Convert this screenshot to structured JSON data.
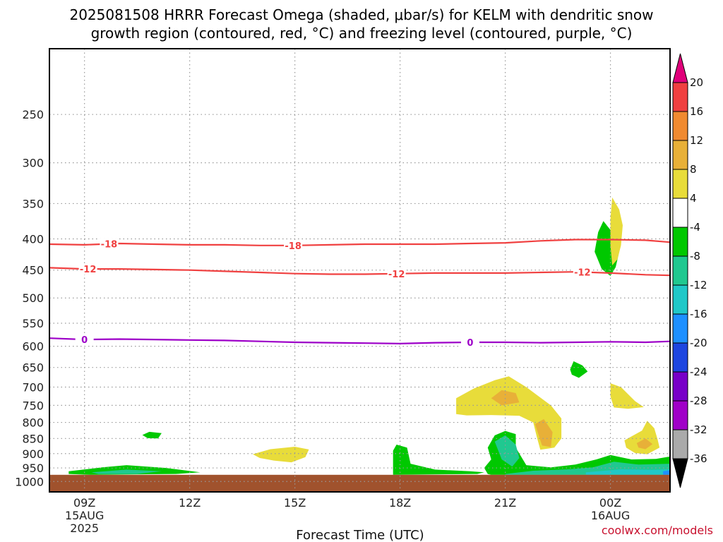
{
  "title_line1": "2025081508 HRRR Forecast Omega (shaded, μbar/s) for KELM with dendritic snow",
  "title_line2": "growth region (contoured, red, °C) and freezing level (contoured, purple, °C)",
  "xlabel": "Forecast Time (UTC)",
  "credit": "coolwx.com/models",
  "colors": {
    "background": "#ffffff",
    "ground": "#a0522d",
    "grid": "#999999",
    "dgz_contour": "#f04040",
    "freezing_contour": "#9d00c8"
  },
  "chart_data": {
    "type": "heatmap",
    "x_axis": {
      "label": "Forecast Time (UTC)",
      "range_hours": [
        8,
        25.7
      ],
      "ticks": [
        {
          "hour": 9,
          "label": "09Z",
          "sub1": "15AUG",
          "sub2": "2025"
        },
        {
          "hour": 12,
          "label": "12Z",
          "sub1": "",
          "sub2": ""
        },
        {
          "hour": 15,
          "label": "15Z",
          "sub1": "",
          "sub2": ""
        },
        {
          "hour": 18,
          "label": "18Z",
          "sub1": "",
          "sub2": ""
        },
        {
          "hour": 21,
          "label": "21Z",
          "sub1": "",
          "sub2": ""
        },
        {
          "hour": 24,
          "label": "00Z",
          "sub1": "16AUG",
          "sub2": ""
        }
      ]
    },
    "y_axis": {
      "label": "",
      "unit": "hPa",
      "scale": "log",
      "range": [
        1040,
        195
      ],
      "ticks": [
        250,
        300,
        350,
        400,
        450,
        500,
        550,
        600,
        650,
        700,
        750,
        800,
        850,
        900,
        950,
        1000
      ]
    },
    "grid": true,
    "ground_pressure": 975,
    "colorbar": {
      "labels": [
        "20",
        "16",
        "12",
        "8",
        "4",
        "-4",
        "-8",
        "-12",
        "-16",
        "-20",
        "-24",
        "-28",
        "-32",
        "-36"
      ],
      "bins": [
        {
          "color": "#f04040"
        },
        {
          "color": "#f08a30"
        },
        {
          "color": "#e8b038"
        },
        {
          "color": "#e8dc3a"
        },
        {
          "color": "#ffffff"
        },
        {
          "color": "#00c800"
        },
        {
          "color": "#20c890"
        },
        {
          "color": "#20c8c8"
        },
        {
          "color": "#1e90ff"
        },
        {
          "color": "#1e46e0"
        },
        {
          "color": "#7800c8"
        },
        {
          "color": "#a000c8"
        },
        {
          "color": "#aaaaaa"
        }
      ],
      "top_arrow_color": "#e0007a",
      "bottom_arrow_color": "#000000"
    },
    "contours": [
      {
        "name": "-18",
        "color": "#f04040",
        "label_hours": [
          9.7,
          14.95
        ],
        "points": [
          [
            8,
            408
          ],
          [
            9,
            409
          ],
          [
            10,
            407
          ],
          [
            11,
            408
          ],
          [
            12,
            409
          ],
          [
            13,
            409
          ],
          [
            14,
            410
          ],
          [
            15,
            410
          ],
          [
            16,
            409
          ],
          [
            17,
            408
          ],
          [
            18,
            408
          ],
          [
            19,
            408
          ],
          [
            20,
            407
          ],
          [
            21,
            406
          ],
          [
            22,
            403
          ],
          [
            23,
            401
          ],
          [
            24,
            401
          ],
          [
            25,
            402
          ],
          [
            25.7,
            405
          ]
        ]
      },
      {
        "name": "-12",
        "color": "#f04040",
        "label_hours": [
          9.1,
          17.9,
          23.2
        ],
        "points": [
          [
            8,
            446
          ],
          [
            9,
            448
          ],
          [
            10,
            448
          ],
          [
            11,
            449
          ],
          [
            12,
            450
          ],
          [
            13,
            452
          ],
          [
            14,
            454
          ],
          [
            15,
            456
          ],
          [
            16,
            457
          ],
          [
            17,
            457
          ],
          [
            18,
            456
          ],
          [
            19,
            455
          ],
          [
            20,
            455
          ],
          [
            21,
            455
          ],
          [
            22,
            454
          ],
          [
            23,
            453
          ],
          [
            24,
            455
          ],
          [
            25,
            458
          ],
          [
            25.7,
            459
          ]
        ]
      },
      {
        "name": "0",
        "color": "#9d00c8",
        "label_hours": [
          9.0,
          20.0
        ],
        "points": [
          [
            8,
            582
          ],
          [
            9,
            585
          ],
          [
            10,
            584
          ],
          [
            11,
            585
          ],
          [
            12,
            586
          ],
          [
            13,
            587
          ],
          [
            14,
            589
          ],
          [
            15,
            591
          ],
          [
            16,
            592
          ],
          [
            17,
            593
          ],
          [
            18,
            594
          ],
          [
            19,
            592
          ],
          [
            20,
            591
          ],
          [
            21,
            591
          ],
          [
            22,
            592
          ],
          [
            23,
            591
          ],
          [
            24,
            590
          ],
          [
            25,
            591
          ],
          [
            25.7,
            589
          ]
        ]
      }
    ],
    "omega_regions": [
      {
        "value_range": "-4 to -8",
        "color": "#00c800",
        "points": [
          [
            8.55,
            962
          ],
          [
            9.5,
            948
          ],
          [
            10.2,
            940
          ],
          [
            11.3,
            950
          ],
          [
            12.3,
            966
          ],
          [
            11.6,
            972
          ],
          [
            9.2,
            975
          ],
          [
            8.55,
            972
          ]
        ]
      },
      {
        "value_range": "-8 to -12",
        "color": "#20c890",
        "points": [
          [
            9.2,
            966
          ],
          [
            10.2,
            956
          ],
          [
            11.2,
            962
          ],
          [
            10.5,
            972
          ],
          [
            9.4,
            972
          ]
        ]
      },
      {
        "value_range": "-4 to -8",
        "color": "#00c800",
        "points": [
          [
            10.65,
            839
          ],
          [
            10.85,
            829
          ],
          [
            11.2,
            833
          ],
          [
            11.1,
            850
          ],
          [
            10.8,
            849
          ]
        ]
      },
      {
        "value_range": "4 to 8",
        "color": "#e8dc3a",
        "points": [
          [
            13.8,
            902
          ],
          [
            14.3,
            885
          ],
          [
            15.0,
            877
          ],
          [
            15.4,
            886
          ],
          [
            15.3,
            912
          ],
          [
            14.9,
            930
          ],
          [
            14.4,
            924
          ],
          [
            14.0,
            915
          ]
        ]
      },
      {
        "value_range": "-4 to -8",
        "color": "#00c800",
        "points": [
          [
            17.8,
            965
          ],
          [
            17.8,
            890
          ],
          [
            17.9,
            870
          ],
          [
            18.2,
            880
          ],
          [
            18.3,
            935
          ],
          [
            19.0,
            956
          ],
          [
            20.0,
            962
          ],
          [
            20.4,
            966
          ],
          [
            20.2,
            972
          ],
          [
            17.8,
            975
          ]
        ]
      },
      {
        "value_range": "-4 to -8",
        "color": "#00c800",
        "points": [
          [
            20.5,
            972
          ],
          [
            20.4,
            950
          ],
          [
            20.6,
            920
          ],
          [
            20.5,
            880
          ],
          [
            20.7,
            840
          ],
          [
            21.0,
            826
          ],
          [
            21.3,
            836
          ],
          [
            21.3,
            880
          ],
          [
            21.6,
            940
          ],
          [
            22.3,
            948
          ],
          [
            23.0,
            938
          ],
          [
            23.6,
            920
          ],
          [
            24.0,
            905
          ],
          [
            24.6,
            920
          ],
          [
            25.3,
            918
          ],
          [
            25.7,
            910
          ],
          [
            25.7,
            975
          ],
          [
            20.6,
            975
          ]
        ]
      },
      {
        "value_range": "-8 to -12",
        "color": "#20c890",
        "points": [
          [
            20.9,
            920
          ],
          [
            20.7,
            860
          ],
          [
            21.0,
            840
          ],
          [
            21.3,
            870
          ],
          [
            21.4,
            915
          ],
          [
            21.2,
            945
          ]
        ]
      },
      {
        "value_range": "-8 to -12",
        "color": "#20c890",
        "points": [
          [
            21.0,
            972
          ],
          [
            21.8,
            960
          ],
          [
            22.8,
            955
          ],
          [
            23.5,
            948
          ],
          [
            24.1,
            928
          ],
          [
            24.8,
            938
          ],
          [
            25.7,
            935
          ],
          [
            25.7,
            975
          ],
          [
            21.0,
            975
          ]
        ]
      },
      {
        "value_range": "-12 to -16",
        "color": "#20c8c8",
        "points": [
          [
            23.3,
            966
          ],
          [
            24.3,
            955
          ],
          [
            25.2,
            957
          ],
          [
            25.7,
            955
          ],
          [
            25.7,
            975
          ],
          [
            23.3,
            975
          ]
        ]
      },
      {
        "value_range": "-16 to -20",
        "color": "#1e90ff",
        "points": [
          [
            25.5,
            962
          ],
          [
            25.7,
            958
          ],
          [
            25.7,
            975
          ],
          [
            25.5,
            975
          ]
        ]
      },
      {
        "value_range": "-4 to -8",
        "color": "#00c800",
        "points": [
          [
            22.85,
            655
          ],
          [
            22.95,
            635
          ],
          [
            23.2,
            645
          ],
          [
            23.35,
            660
          ],
          [
            23.1,
            676
          ],
          [
            22.9,
            668
          ]
        ]
      },
      {
        "value_range": "-4 to -8",
        "color": "#00c800",
        "points": [
          [
            23.55,
            420
          ],
          [
            23.65,
            390
          ],
          [
            23.8,
            374
          ],
          [
            24.05,
            390
          ],
          [
            24.25,
            420
          ],
          [
            24.15,
            445
          ],
          [
            24.0,
            460
          ],
          [
            23.75,
            448
          ]
        ]
      },
      {
        "value_range": "4 to 8",
        "color": "#e8dc3a",
        "points": [
          [
            24.0,
            370
          ],
          [
            24.05,
            342
          ],
          [
            24.25,
            358
          ],
          [
            24.35,
            380
          ],
          [
            24.3,
            410
          ],
          [
            24.2,
            432
          ],
          [
            24.05,
            442
          ],
          [
            24.0,
            410
          ]
        ]
      },
      {
        "value_range": "4 to 8",
        "color": "#e8dc3a",
        "points": [
          [
            19.6,
            775
          ],
          [
            19.6,
            730
          ],
          [
            20.1,
            704
          ],
          [
            20.7,
            682
          ],
          [
            21.1,
            672
          ],
          [
            21.6,
            700
          ],
          [
            22.3,
            750
          ],
          [
            22.6,
            788
          ],
          [
            22.6,
            850
          ],
          [
            22.4,
            880
          ],
          [
            22.0,
            887
          ],
          [
            21.9,
            845
          ],
          [
            21.8,
            800
          ],
          [
            21.4,
            780
          ],
          [
            20.6,
            778
          ],
          [
            19.9,
            779
          ]
        ]
      },
      {
        "value_range": "8 to 12",
        "color": "#e8b038",
        "points": [
          [
            20.6,
            730
          ],
          [
            20.9,
            708
          ],
          [
            21.3,
            716
          ],
          [
            21.4,
            742
          ],
          [
            20.9,
            750
          ]
        ]
      },
      {
        "value_range": "8 to 12",
        "color": "#e8b038",
        "points": [
          [
            21.85,
            805
          ],
          [
            22.1,
            790
          ],
          [
            22.35,
            830
          ],
          [
            22.3,
            878
          ],
          [
            22.05,
            873
          ]
        ]
      },
      {
        "value_range": "4 to 8",
        "color": "#e8dc3a",
        "points": [
          [
            24.0,
            725
          ],
          [
            24.0,
            690
          ],
          [
            24.3,
            700
          ],
          [
            24.7,
            738
          ],
          [
            24.95,
            755
          ],
          [
            24.5,
            760
          ],
          [
            24.1,
            756
          ]
        ]
      },
      {
        "value_range": "4 to 8",
        "color": "#e8dc3a",
        "points": [
          [
            24.4,
            856
          ],
          [
            24.9,
            825
          ],
          [
            25.05,
            795
          ],
          [
            25.25,
            818
          ],
          [
            25.35,
            855
          ],
          [
            25.4,
            880
          ],
          [
            25.05,
            902
          ],
          [
            24.7,
            898
          ],
          [
            24.45,
            880
          ]
        ]
      },
      {
        "value_range": "8 to 12",
        "color": "#e8b038",
        "points": [
          [
            24.75,
            865
          ],
          [
            25.0,
            850
          ],
          [
            25.2,
            868
          ],
          [
            25.0,
            885
          ],
          [
            24.8,
            880
          ]
        ]
      }
    ]
  }
}
